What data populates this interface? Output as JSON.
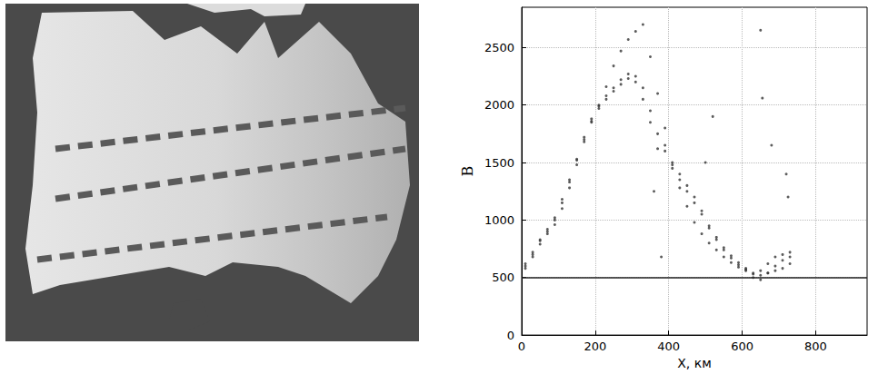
{
  "chart_data": {
    "type": "scatter",
    "xlabel": "X, км",
    "ylabel": "B",
    "xlim": [
      0,
      940
    ],
    "xticks": [
      0,
      200,
      400,
      600,
      800
    ],
    "ylim": [
      0,
      2850
    ],
    "yticks": [
      0,
      500,
      1000,
      1500,
      2000,
      2500
    ],
    "grid": true,
    "color": "#333333",
    "marker": "dot",
    "hline": 500,
    "x": [
      10,
      30,
      50,
      70,
      90,
      110,
      130,
      150,
      170,
      190,
      210,
      230,
      250,
      270,
      290,
      310,
      330,
      350,
      370,
      390,
      410,
      430,
      450,
      470,
      490,
      510,
      530,
      550,
      570,
      590,
      610,
      630,
      650,
      670,
      690,
      710,
      730
    ],
    "series": [
      {
        "values": [
          600,
          680,
          790,
          880,
          960,
          1100,
          1280,
          1480,
          1680,
          1850,
          1990,
          2160,
          2340,
          2470,
          2570,
          2640,
          2700,
          2420,
          2100,
          1800,
          1500,
          1280,
          1120,
          980,
          880,
          800,
          740,
          680,
          630,
          590,
          560,
          530,
          520,
          540,
          560,
          580,
          620
        ]
      },
      {
        "values": [
          620,
          720,
          820,
          900,
          1000,
          1150,
          1330,
          1520,
          1720,
          1880,
          2000,
          2080,
          2150,
          2220,
          2270,
          2250,
          2150,
          1950,
          1750,
          1600,
          1450,
          1350,
          1250,
          1150,
          1050,
          930,
          830,
          740,
          670,
          610,
          570,
          540,
          560,
          620,
          680,
          700,
          720
        ]
      },
      {
        "values": [
          580,
          700,
          830,
          920,
          1020,
          1180,
          1350,
          1530,
          1700,
          1860,
          1970,
          2050,
          2120,
          2180,
          2230,
          2200,
          2050,
          1850,
          1620,
          1650,
          1480,
          1400,
          1300,
          1200,
          1080,
          950,
          850,
          760,
          690,
          630,
          580,
          500,
          480,
          540,
          600,
          650,
          680
        ]
      },
      {
        "x": [
          650,
          655,
          680,
          520,
          500,
          380,
          720,
          725,
          360
        ],
        "values": [
          2650,
          2060,
          1650,
          1900,
          1500,
          680,
          1400,
          1200,
          1250
        ]
      }
    ]
  }
}
